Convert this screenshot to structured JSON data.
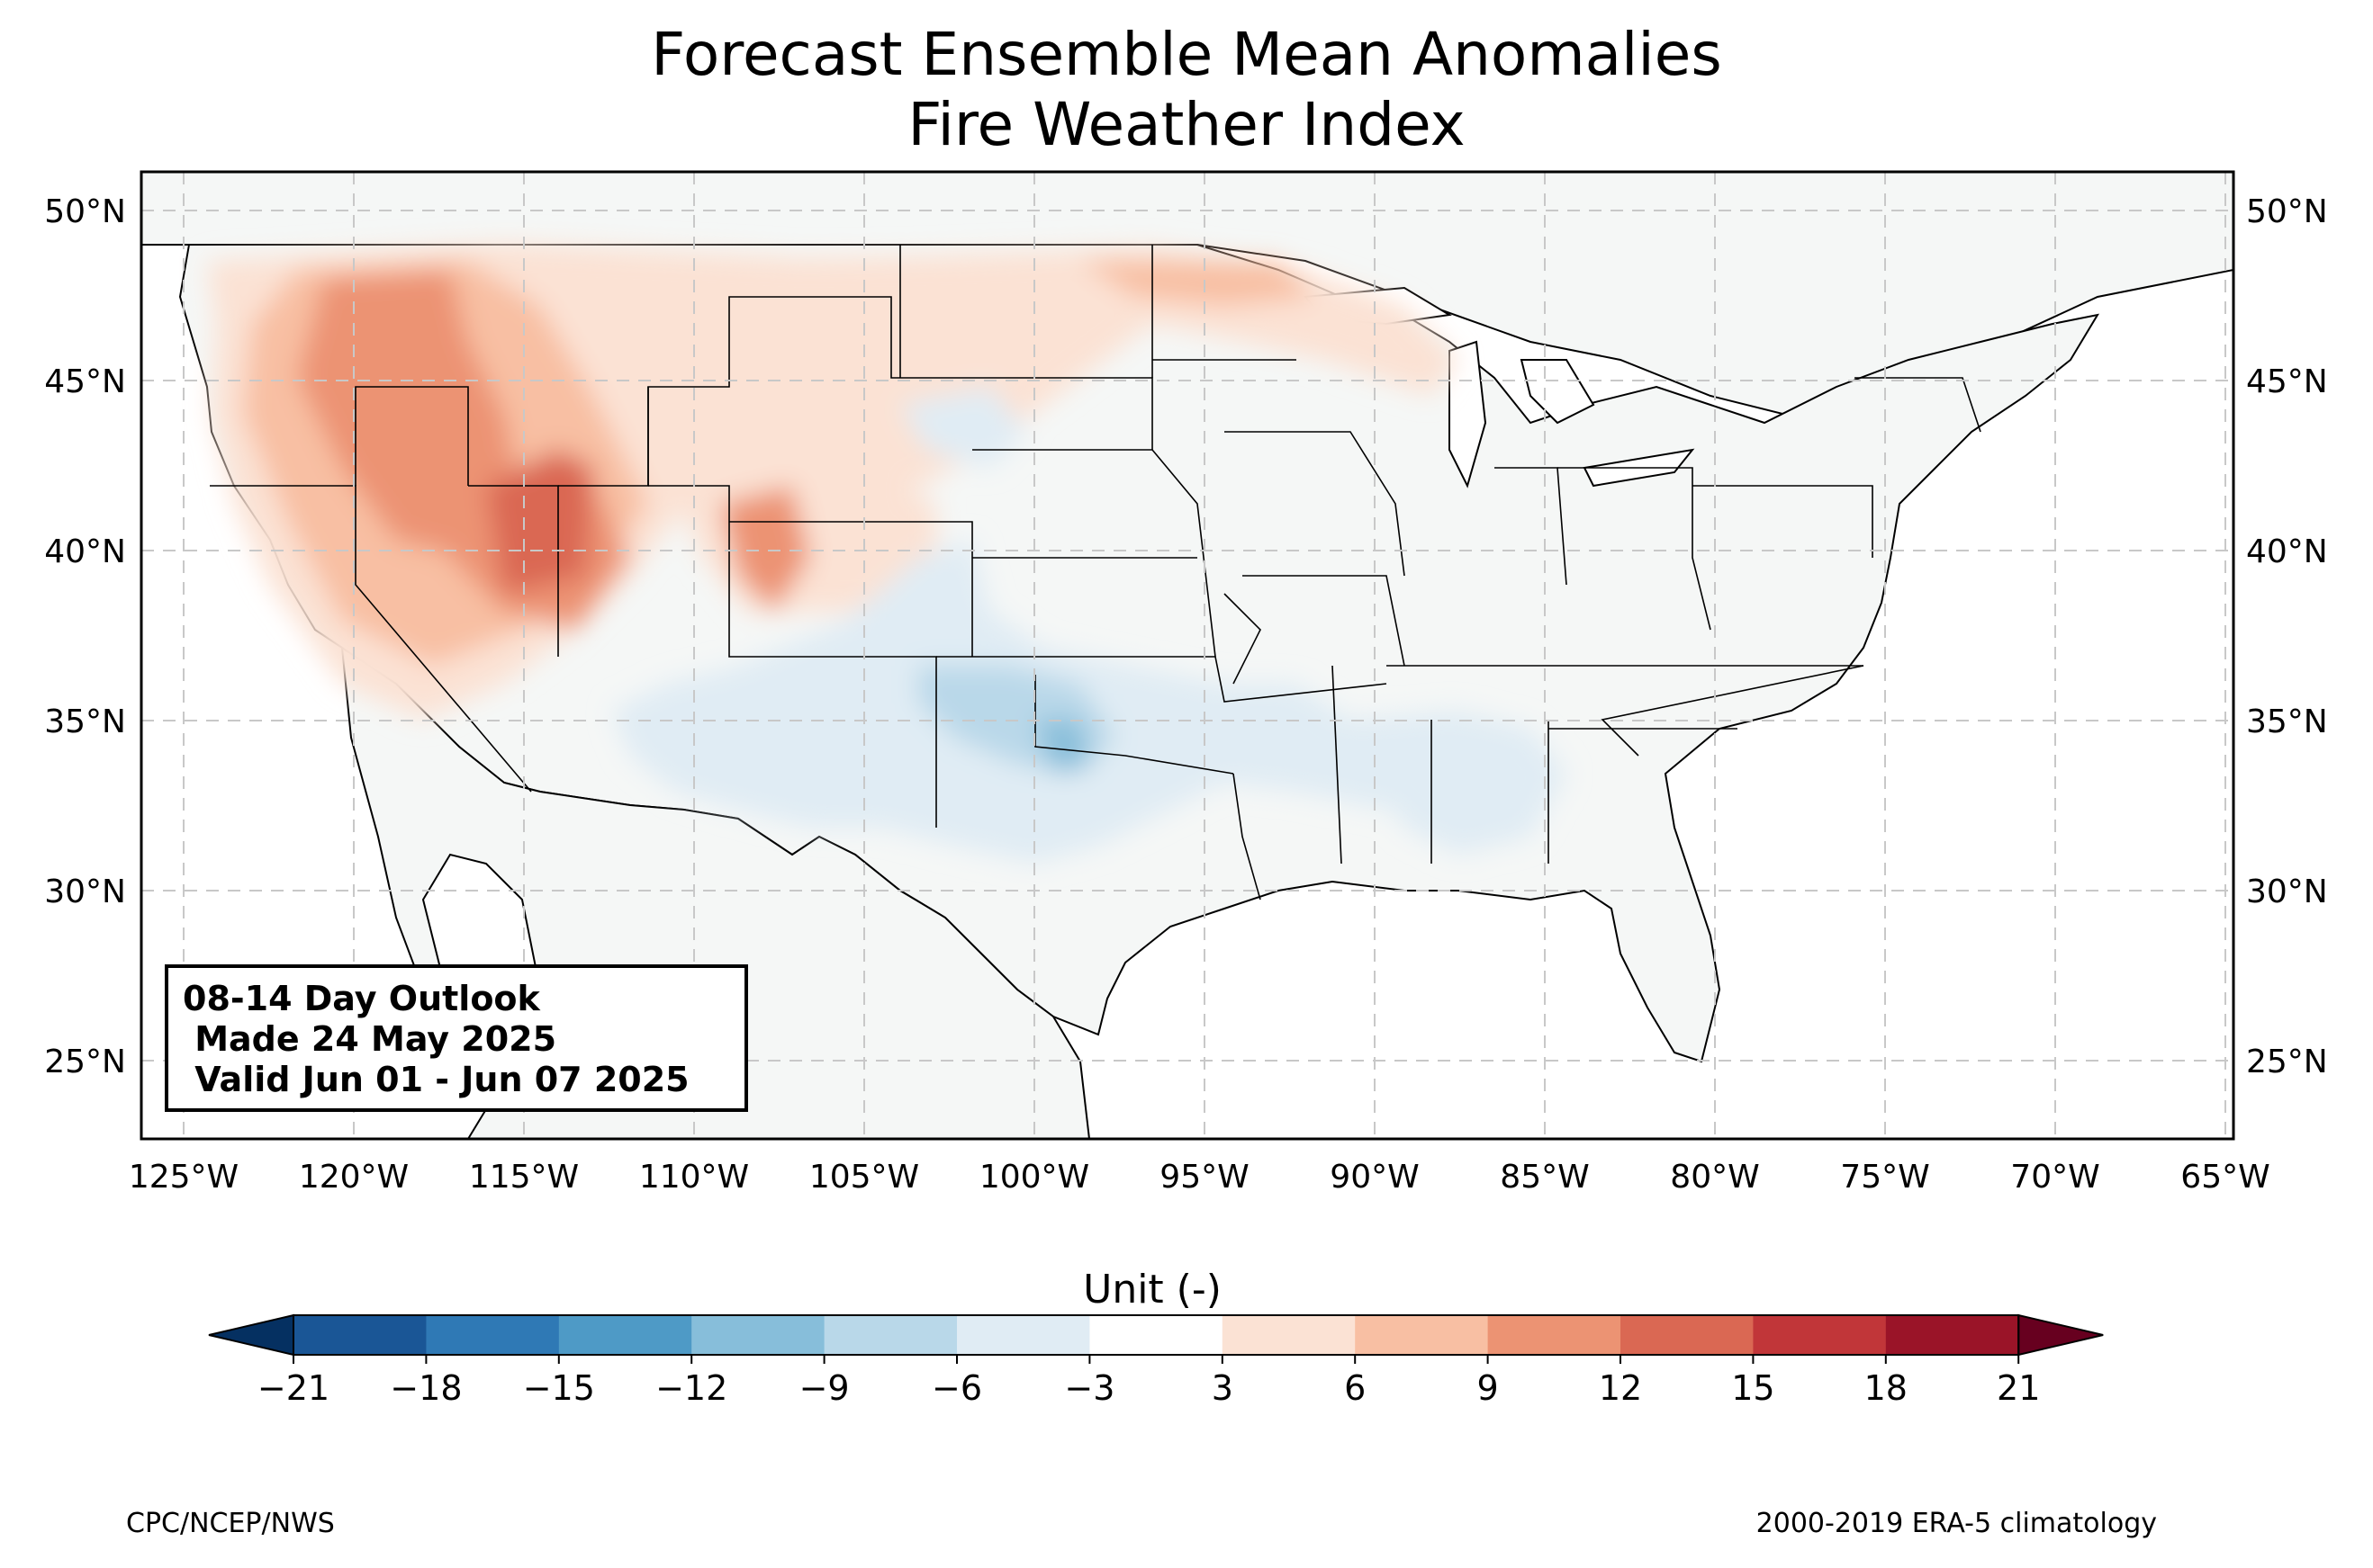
{
  "title": {
    "line1": "Forecast Ensemble Mean Anomalies",
    "line2": "Fire Weather Index"
  },
  "map": {
    "lon_range": [
      -126.3,
      -64.9
    ],
    "lat_range": [
      22.7,
      51.1
    ],
    "lon_ticks": [
      "125°W",
      "120°W",
      "115°W",
      "110°W",
      "105°W",
      "100°W",
      "95°W",
      "90°W",
      "85°W",
      "80°W",
      "75°W",
      "70°W",
      "65°W"
    ],
    "lat_ticks": [
      "50°N",
      "45°N",
      "40°N",
      "35°N",
      "30°N",
      "25°N"
    ],
    "land_color": "#f5f7f6",
    "anomaly_regions": [
      {
        "region": "Northern Rockies / Pacific Northwest",
        "level": "6 to 9"
      },
      {
        "region": "Great Basin (Nevada/Utah)",
        "level": "12 to 15"
      },
      {
        "region": "Northern Plains / Upper Midwest",
        "level": "3 to 6"
      },
      {
        "region": "Southern Plains / Texas-Oklahoma",
        "level": "-6 to -9"
      },
      {
        "region": "Southeast (Mississippi/Alabama)",
        "level": "-3 to -6"
      }
    ]
  },
  "outlook_box": {
    "line1": "08-14 Day Outlook",
    "line2": " Made 24 May 2025",
    "line3": " Valid Jun 01 - Jun 07 2025"
  },
  "colorbar": {
    "label": "Unit (-)",
    "ticks": [
      "−21",
      "−18",
      "−15",
      "−12",
      "−9",
      "−6",
      "−3",
      "3",
      "6",
      "9",
      "12",
      "15",
      "18",
      "21"
    ],
    "colors": [
      "#053061",
      "#1a5696",
      "#2f79b5",
      "#4e9ac6",
      "#87beda",
      "#b9d8e9",
      "#e0ecf4",
      "#ffffff",
      "#fbe2d4",
      "#f8bfa3",
      "#ec9373",
      "#da6853",
      "#c13639",
      "#9a1428",
      "#67001f"
    ]
  },
  "credits": {
    "left": "CPC/NCEP/NWS",
    "right": "2000-2019 ERA-5 climatology"
  }
}
